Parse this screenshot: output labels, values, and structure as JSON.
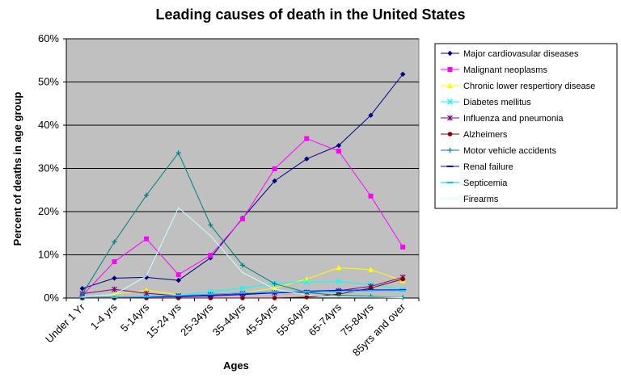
{
  "chart_data": {
    "type": "line",
    "title": "Leading causes of death in the United States",
    "xlabel": "Ages",
    "ylabel": "Percent of deaths in age group",
    "ylim": [
      0,
      60
    ],
    "y_ticks": [
      "0%",
      "10%",
      "20%",
      "30%",
      "40%",
      "50%",
      "60%"
    ],
    "y_tick_values": [
      0,
      10,
      20,
      30,
      40,
      50,
      60
    ],
    "grid": "horizontal",
    "legend_position": "right",
    "plot_background": "#c0c0c0",
    "categories": [
      "Under 1 Yr",
      "1-4 yrs",
      "5-14yrs",
      "15-24 yrs",
      "25-34yrs",
      "35-44yrs",
      "45-54yrs",
      "55-64yrs",
      "65-74yrs",
      "75-84yrs",
      "85yrs and over"
    ],
    "series": [
      {
        "name": "Major cardiovasular diseases",
        "color": "#000080",
        "marker": "diamond",
        "values": [
          2.2,
          4.6,
          4.8,
          4.1,
          9.3,
          18.5,
          27.1,
          32.2,
          35.3,
          42.3,
          51.8
        ]
      },
      {
        "name": "Malignant neoplasms",
        "color": "#ff00ff",
        "marker": "square",
        "values": [
          0.6,
          8.4,
          13.7,
          5.4,
          9.9,
          18.3,
          29.9,
          36.9,
          34.0,
          23.6,
          11.8
        ]
      },
      {
        "name": "Chronic lower respertiory disease",
        "color": "#ffff00",
        "marker": "triangle",
        "values": [
          0.2,
          0.9,
          1.8,
          0.8,
          0.7,
          1.2,
          2.3,
          4.4,
          7.0,
          6.6,
          4.0
        ]
      },
      {
        "name": "Diabetes mellitus",
        "color": "#00ffff",
        "marker": "x",
        "values": [
          0.1,
          0.2,
          0.4,
          0.6,
          1.5,
          2.3,
          3.4,
          3.7,
          3.8,
          3.2,
          2.0
        ]
      },
      {
        "name": "Influenza and pneumonia",
        "color": "#800080",
        "marker": "star",
        "values": [
          1.0,
          2.0,
          1.1,
          0.5,
          0.7,
          1.0,
          1.2,
          1.3,
          1.7,
          2.7,
          4.8
        ]
      },
      {
        "name": "Alzheimers",
        "color": "#800000",
        "marker": "circle",
        "values": [
          0.0,
          0.0,
          0.0,
          0.0,
          0.0,
          0.0,
          0.0,
          0.2,
          0.9,
          2.3,
          4.4
        ]
      },
      {
        "name": "Motor vehicle accidents",
        "color": "#008080",
        "marker": "plus",
        "values": [
          0.9,
          13.0,
          23.8,
          33.6,
          16.9,
          7.6,
          3.3,
          1.3,
          0.6,
          0.4,
          0.1
        ]
      },
      {
        "name": "Renal failure",
        "color": "#0000ff",
        "marker": "dash",
        "values": [
          0.2,
          0.2,
          0.2,
          0.3,
          0.5,
          0.8,
          1.2,
          1.6,
          1.8,
          1.9,
          1.9
        ]
      },
      {
        "name": "Septicemia",
        "color": "#00ccff",
        "marker": "dash",
        "values": [
          0.2,
          0.2,
          0.3,
          0.6,
          0.9,
          1.2,
          1.4,
          1.5,
          1.5,
          1.7,
          1.7
        ]
      },
      {
        "name": "Firearms",
        "color": "#ccffff",
        "marker": "none",
        "values": [
          0.3,
          0.8,
          5.1,
          20.9,
          14.4,
          5.9,
          2.1,
          0.7,
          0.3,
          0.2,
          0.1
        ]
      }
    ]
  }
}
